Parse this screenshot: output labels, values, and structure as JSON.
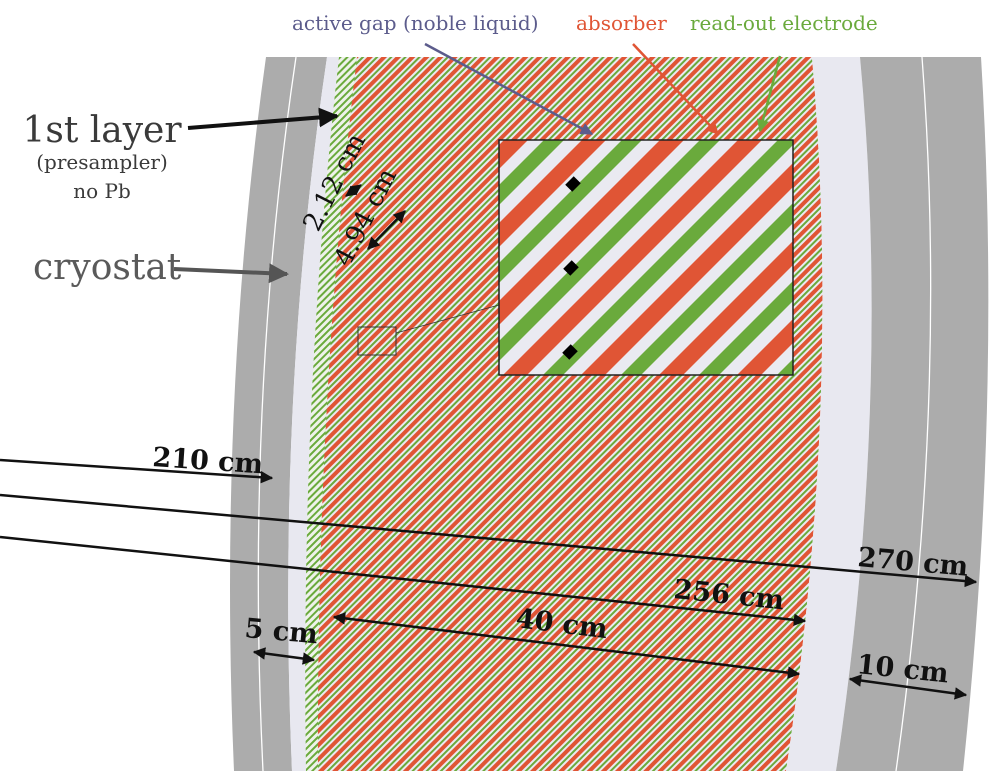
{
  "legend": {
    "active_gap": "active gap (noble liquid)",
    "absorber": "absorber",
    "readout": "read-out electrode"
  },
  "labels": {
    "first_layer": "1st layer",
    "presampler": "(presampler)",
    "no_pb": "no Pb",
    "cryostat": "cryostat"
  },
  "dimensions": {
    "d_2_12": "2.12 cm",
    "d_4_94": "4.94 cm",
    "r_210": "210 cm",
    "r_270": "270 cm",
    "r_256": "256 cm",
    "t_40": "40 cm",
    "t_5": "5 cm",
    "t_10": "10 cm"
  },
  "colors": {
    "absorber": "#e05535",
    "electrode": "#6aaa3c",
    "gap": "#e8e8f0",
    "cryostat": "#acacac",
    "gap_arrow": "#5c5c8c",
    "label_gray": "#5a5a5a"
  }
}
